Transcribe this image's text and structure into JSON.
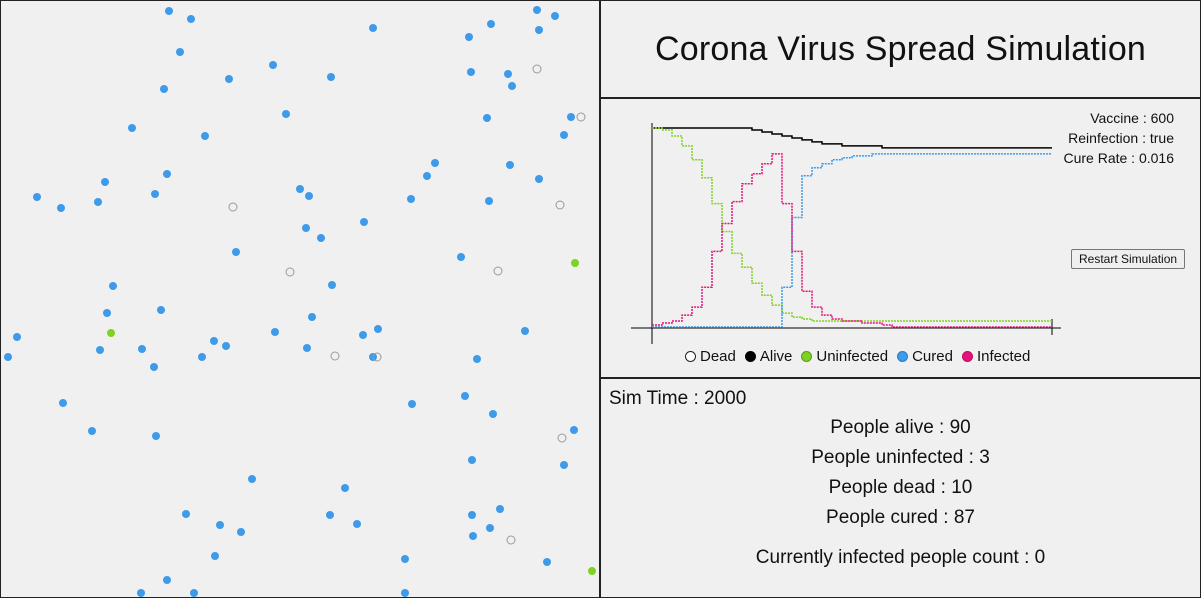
{
  "header": {
    "title": "Corona Virus Spread Simulation"
  },
  "params": {
    "vaccine": "Vaccine : 600",
    "reinfection": "Reinfection : true",
    "cure_rate": "Cure Rate : 0.016"
  },
  "controls": {
    "restart_label": "Restart Simulation"
  },
  "legend": [
    {
      "label": "Dead",
      "fill": "#ffffff",
      "stroke": "#222222"
    },
    {
      "label": "Alive",
      "fill": "#000000",
      "stroke": "#000000"
    },
    {
      "label": "Uninfected",
      "fill": "#7ed321",
      "stroke": "#5a9a18"
    },
    {
      "label": "Cured",
      "fill": "#3d9be9",
      "stroke": "#2a7bc4"
    },
    {
      "label": "Infected",
      "fill": "#e6137a",
      "stroke": "#b80f61"
    }
  ],
  "stats": {
    "sim_time": "Sim Time : 2000",
    "alive": "People alive : 90",
    "uninfected": "People uninfected : 3",
    "dead": "People dead : 10",
    "cured": "People cured : 87",
    "infected": "Currently infected people count : 0"
  },
  "colors": {
    "alive": "#000000",
    "uninfected": "#7ed321",
    "cured": "#3d9be9",
    "infected": "#e6137a",
    "dead": "#9a9a9a"
  },
  "population": {
    "cured": [
      [
        168,
        10
      ],
      [
        190,
        18
      ],
      [
        372,
        27
      ],
      [
        490,
        23
      ],
      [
        536,
        9
      ],
      [
        554,
        15
      ],
      [
        468,
        36
      ],
      [
        538,
        29
      ],
      [
        179,
        51
      ],
      [
        272,
        64
      ],
      [
        330,
        76
      ],
      [
        228,
        78
      ],
      [
        163,
        88
      ],
      [
        470,
        71
      ],
      [
        507,
        73
      ],
      [
        511,
        85
      ],
      [
        285,
        113
      ],
      [
        486,
        117
      ],
      [
        570,
        116
      ],
      [
        131,
        127
      ],
      [
        204,
        135
      ],
      [
        563,
        134
      ],
      [
        434,
        162
      ],
      [
        426,
        175
      ],
      [
        509,
        164
      ],
      [
        166,
        173
      ],
      [
        104,
        181
      ],
      [
        538,
        178
      ],
      [
        36,
        196
      ],
      [
        60,
        207
      ],
      [
        97,
        201
      ],
      [
        154,
        193
      ],
      [
        299,
        188
      ],
      [
        308,
        195
      ],
      [
        410,
        198
      ],
      [
        488,
        200
      ],
      [
        305,
        227
      ],
      [
        320,
        237
      ],
      [
        363,
        221
      ],
      [
        235,
        251
      ],
      [
        460,
        256
      ],
      [
        331,
        284
      ],
      [
        112,
        285
      ],
      [
        106,
        312
      ],
      [
        160,
        309
      ],
      [
        311,
        316
      ],
      [
        274,
        331
      ],
      [
        213,
        340
      ],
      [
        225,
        345
      ],
      [
        362,
        334
      ],
      [
        377,
        328
      ],
      [
        524,
        330
      ],
      [
        16,
        336
      ],
      [
        7,
        356
      ],
      [
        99,
        349
      ],
      [
        141,
        348
      ],
      [
        153,
        366
      ],
      [
        201,
        356
      ],
      [
        306,
        347
      ],
      [
        372,
        356
      ],
      [
        476,
        358
      ],
      [
        62,
        402
      ],
      [
        91,
        430
      ],
      [
        155,
        435
      ],
      [
        411,
        403
      ],
      [
        464,
        395
      ],
      [
        492,
        413
      ],
      [
        573,
        429
      ],
      [
        563,
        464
      ],
      [
        471,
        459
      ],
      [
        251,
        478
      ],
      [
        344,
        487
      ],
      [
        499,
        508
      ],
      [
        185,
        513
      ],
      [
        219,
        524
      ],
      [
        240,
        531
      ],
      [
        329,
        514
      ],
      [
        356,
        523
      ],
      [
        471,
        514
      ],
      [
        489,
        527
      ],
      [
        472,
        535
      ],
      [
        214,
        555
      ],
      [
        404,
        558
      ],
      [
        546,
        561
      ],
      [
        166,
        579
      ],
      [
        140,
        592
      ],
      [
        193,
        592
      ],
      [
        404,
        592
      ]
    ],
    "uninfected": [
      [
        574,
        262
      ],
      [
        110,
        332
      ],
      [
        591,
        570
      ]
    ],
    "dead": [
      [
        536,
        68
      ],
      [
        580,
        116
      ],
      [
        232,
        206
      ],
      [
        559,
        204
      ],
      [
        289,
        271
      ],
      [
        497,
        270
      ],
      [
        334,
        355
      ],
      [
        376,
        356
      ],
      [
        561,
        437
      ],
      [
        510,
        539
      ]
    ]
  },
  "chart_data": {
    "type": "line",
    "title": "",
    "xlabel": "",
    "ylabel": "",
    "xlim": [
      0,
      2000
    ],
    "ylim": [
      0,
      100
    ],
    "x": [
      0,
      50,
      100,
      150,
      200,
      250,
      300,
      350,
      400,
      450,
      500,
      550,
      600,
      650,
      700,
      750,
      800,
      850,
      900,
      950,
      1000,
      1050,
      1100,
      1150,
      1200,
      1250,
      1300,
      1350,
      1400,
      1450,
      1500,
      1550,
      1600,
      1650,
      1700,
      1750,
      1800,
      1850,
      1900,
      1950,
      2000
    ],
    "series": [
      {
        "name": "Alive",
        "values": [
          100,
          100,
          100,
          100,
          100,
          100,
          100,
          100,
          100,
          100,
          99,
          98,
          97,
          96,
          95,
          94,
          93,
          92,
          92,
          91,
          91,
          91,
          91,
          90,
          90,
          90,
          90,
          90,
          90,
          90,
          90,
          90,
          90,
          90,
          90,
          90,
          90,
          90,
          90,
          90,
          90
        ]
      },
      {
        "name": "Uninfected",
        "values": [
          100,
          99,
          96,
          91,
          84,
          75,
          62,
          48,
          37,
          30,
          22,
          16,
          11,
          7,
          5,
          4,
          3,
          3,
          3,
          3,
          3,
          3,
          3,
          3,
          3,
          3,
          3,
          3,
          3,
          3,
          3,
          3,
          3,
          3,
          3,
          3,
          3,
          3,
          3,
          3,
          3
        ]
      },
      {
        "name": "Cured",
        "values": [
          0,
          0,
          0,
          0,
          0,
          0,
          0,
          0,
          0,
          0,
          0,
          0,
          0,
          20,
          55,
          76,
          80,
          82,
          84,
          85,
          86,
          86,
          87,
          87,
          87,
          87,
          87,
          87,
          87,
          87,
          87,
          87,
          87,
          87,
          87,
          87,
          87,
          87,
          87,
          87,
          87
        ]
      },
      {
        "name": "Infected",
        "values": [
          1,
          2,
          3,
          6,
          10,
          20,
          38,
          52,
          63,
          72,
          77,
          82,
          87,
          62,
          38,
          18,
          10,
          6,
          4,
          3,
          3,
          2,
          2,
          1,
          0,
          0,
          0,
          0,
          0,
          0,
          0,
          0,
          0,
          0,
          0,
          0,
          0,
          0,
          0,
          0,
          0
        ]
      },
      {
        "name": "Dead",
        "values": [
          0,
          0,
          0,
          0,
          0,
          0,
          0,
          0,
          0,
          0,
          1,
          2,
          3,
          4,
          5,
          6,
          7,
          8,
          8,
          9,
          9,
          9,
          9,
          10,
          10,
          10,
          10,
          10,
          10,
          10,
          10,
          10,
          10,
          10,
          10,
          10,
          10,
          10,
          10,
          10,
          10
        ]
      }
    ]
  }
}
